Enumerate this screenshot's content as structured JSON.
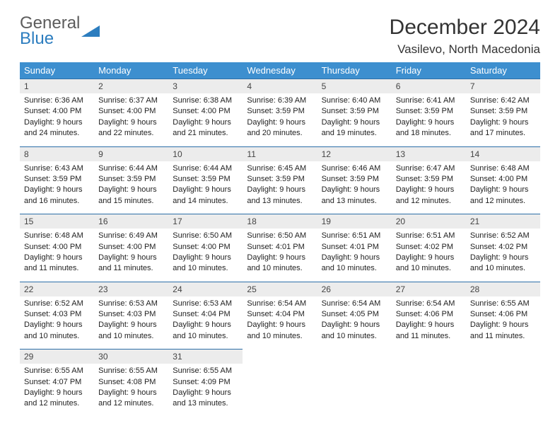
{
  "logo": {
    "word1": "General",
    "word2": "Blue"
  },
  "title": "December 2024",
  "location": "Vasilevo, North Macedonia",
  "colors": {
    "header_bg": "#3d8fcf",
    "header_text": "#ffffff",
    "daynum_bg": "#ececec",
    "border": "#2c6fa8",
    "logo_gray": "#5c5c5c",
    "logo_blue": "#2c7dbf"
  },
  "weekdays": [
    "Sunday",
    "Monday",
    "Tuesday",
    "Wednesday",
    "Thursday",
    "Friday",
    "Saturday"
  ],
  "weeks": [
    [
      {
        "n": "1",
        "sr": "Sunrise: 6:36 AM",
        "ss": "Sunset: 4:00 PM",
        "dl1": "Daylight: 9 hours",
        "dl2": "and 24 minutes."
      },
      {
        "n": "2",
        "sr": "Sunrise: 6:37 AM",
        "ss": "Sunset: 4:00 PM",
        "dl1": "Daylight: 9 hours",
        "dl2": "and 22 minutes."
      },
      {
        "n": "3",
        "sr": "Sunrise: 6:38 AM",
        "ss": "Sunset: 4:00 PM",
        "dl1": "Daylight: 9 hours",
        "dl2": "and 21 minutes."
      },
      {
        "n": "4",
        "sr": "Sunrise: 6:39 AM",
        "ss": "Sunset: 3:59 PM",
        "dl1": "Daylight: 9 hours",
        "dl2": "and 20 minutes."
      },
      {
        "n": "5",
        "sr": "Sunrise: 6:40 AM",
        "ss": "Sunset: 3:59 PM",
        "dl1": "Daylight: 9 hours",
        "dl2": "and 19 minutes."
      },
      {
        "n": "6",
        "sr": "Sunrise: 6:41 AM",
        "ss": "Sunset: 3:59 PM",
        "dl1": "Daylight: 9 hours",
        "dl2": "and 18 minutes."
      },
      {
        "n": "7",
        "sr": "Sunrise: 6:42 AM",
        "ss": "Sunset: 3:59 PM",
        "dl1": "Daylight: 9 hours",
        "dl2": "and 17 minutes."
      }
    ],
    [
      {
        "n": "8",
        "sr": "Sunrise: 6:43 AM",
        "ss": "Sunset: 3:59 PM",
        "dl1": "Daylight: 9 hours",
        "dl2": "and 16 minutes."
      },
      {
        "n": "9",
        "sr": "Sunrise: 6:44 AM",
        "ss": "Sunset: 3:59 PM",
        "dl1": "Daylight: 9 hours",
        "dl2": "and 15 minutes."
      },
      {
        "n": "10",
        "sr": "Sunrise: 6:44 AM",
        "ss": "Sunset: 3:59 PM",
        "dl1": "Daylight: 9 hours",
        "dl2": "and 14 minutes."
      },
      {
        "n": "11",
        "sr": "Sunrise: 6:45 AM",
        "ss": "Sunset: 3:59 PM",
        "dl1": "Daylight: 9 hours",
        "dl2": "and 13 minutes."
      },
      {
        "n": "12",
        "sr": "Sunrise: 6:46 AM",
        "ss": "Sunset: 3:59 PM",
        "dl1": "Daylight: 9 hours",
        "dl2": "and 13 minutes."
      },
      {
        "n": "13",
        "sr": "Sunrise: 6:47 AM",
        "ss": "Sunset: 3:59 PM",
        "dl1": "Daylight: 9 hours",
        "dl2": "and 12 minutes."
      },
      {
        "n": "14",
        "sr": "Sunrise: 6:48 AM",
        "ss": "Sunset: 4:00 PM",
        "dl1": "Daylight: 9 hours",
        "dl2": "and 12 minutes."
      }
    ],
    [
      {
        "n": "15",
        "sr": "Sunrise: 6:48 AM",
        "ss": "Sunset: 4:00 PM",
        "dl1": "Daylight: 9 hours",
        "dl2": "and 11 minutes."
      },
      {
        "n": "16",
        "sr": "Sunrise: 6:49 AM",
        "ss": "Sunset: 4:00 PM",
        "dl1": "Daylight: 9 hours",
        "dl2": "and 11 minutes."
      },
      {
        "n": "17",
        "sr": "Sunrise: 6:50 AM",
        "ss": "Sunset: 4:00 PM",
        "dl1": "Daylight: 9 hours",
        "dl2": "and 10 minutes."
      },
      {
        "n": "18",
        "sr": "Sunrise: 6:50 AM",
        "ss": "Sunset: 4:01 PM",
        "dl1": "Daylight: 9 hours",
        "dl2": "and 10 minutes."
      },
      {
        "n": "19",
        "sr": "Sunrise: 6:51 AM",
        "ss": "Sunset: 4:01 PM",
        "dl1": "Daylight: 9 hours",
        "dl2": "and 10 minutes."
      },
      {
        "n": "20",
        "sr": "Sunrise: 6:51 AM",
        "ss": "Sunset: 4:02 PM",
        "dl1": "Daylight: 9 hours",
        "dl2": "and 10 minutes."
      },
      {
        "n": "21",
        "sr": "Sunrise: 6:52 AM",
        "ss": "Sunset: 4:02 PM",
        "dl1": "Daylight: 9 hours",
        "dl2": "and 10 minutes."
      }
    ],
    [
      {
        "n": "22",
        "sr": "Sunrise: 6:52 AM",
        "ss": "Sunset: 4:03 PM",
        "dl1": "Daylight: 9 hours",
        "dl2": "and 10 minutes."
      },
      {
        "n": "23",
        "sr": "Sunrise: 6:53 AM",
        "ss": "Sunset: 4:03 PM",
        "dl1": "Daylight: 9 hours",
        "dl2": "and 10 minutes."
      },
      {
        "n": "24",
        "sr": "Sunrise: 6:53 AM",
        "ss": "Sunset: 4:04 PM",
        "dl1": "Daylight: 9 hours",
        "dl2": "and 10 minutes."
      },
      {
        "n": "25",
        "sr": "Sunrise: 6:54 AM",
        "ss": "Sunset: 4:04 PM",
        "dl1": "Daylight: 9 hours",
        "dl2": "and 10 minutes."
      },
      {
        "n": "26",
        "sr": "Sunrise: 6:54 AM",
        "ss": "Sunset: 4:05 PM",
        "dl1": "Daylight: 9 hours",
        "dl2": "and 10 minutes."
      },
      {
        "n": "27",
        "sr": "Sunrise: 6:54 AM",
        "ss": "Sunset: 4:06 PM",
        "dl1": "Daylight: 9 hours",
        "dl2": "and 11 minutes."
      },
      {
        "n": "28",
        "sr": "Sunrise: 6:55 AM",
        "ss": "Sunset: 4:06 PM",
        "dl1": "Daylight: 9 hours",
        "dl2": "and 11 minutes."
      }
    ],
    [
      {
        "n": "29",
        "sr": "Sunrise: 6:55 AM",
        "ss": "Sunset: 4:07 PM",
        "dl1": "Daylight: 9 hours",
        "dl2": "and 12 minutes."
      },
      {
        "n": "30",
        "sr": "Sunrise: 6:55 AM",
        "ss": "Sunset: 4:08 PM",
        "dl1": "Daylight: 9 hours",
        "dl2": "and 12 minutes."
      },
      {
        "n": "31",
        "sr": "Sunrise: 6:55 AM",
        "ss": "Sunset: 4:09 PM",
        "dl1": "Daylight: 9 hours",
        "dl2": "and 13 minutes."
      },
      null,
      null,
      null,
      null
    ]
  ]
}
